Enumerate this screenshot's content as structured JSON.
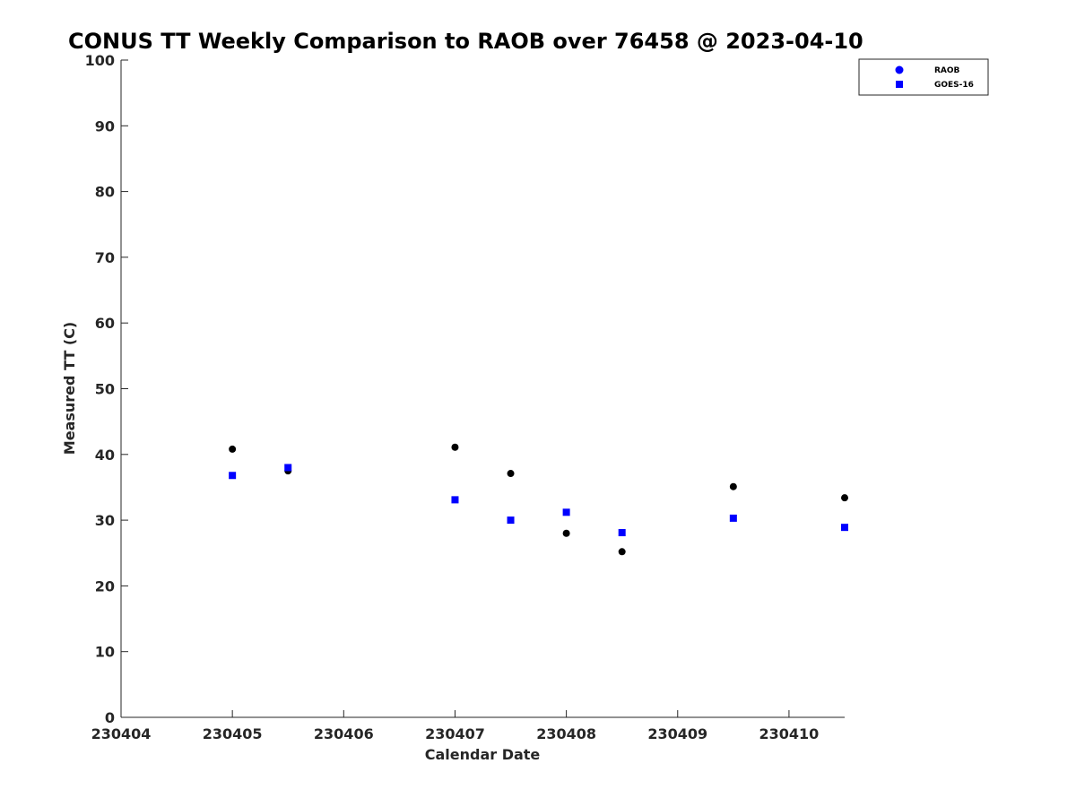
{
  "chart_data": {
    "type": "scatter",
    "title": "CONUS TT Weekly Comparison to RAOB over 76458 @ 2023-04-10",
    "xlabel": "Calendar Date",
    "ylabel": "Measured TT (C)",
    "xlim": [
      230404,
      230410.5
    ],
    "ylim": [
      0,
      100
    ],
    "xticks": [
      230404,
      230405,
      230406,
      230407,
      230408,
      230409,
      230410
    ],
    "xtick_labels": [
      "230404",
      "230405",
      "230406",
      "230407",
      "230408",
      "230409",
      "230410"
    ],
    "yticks": [
      0,
      10,
      20,
      30,
      40,
      50,
      60,
      70,
      80,
      90,
      100
    ],
    "ytick_labels": [
      "0",
      "10",
      "20",
      "30",
      "40",
      "50",
      "60",
      "70",
      "80",
      "90",
      "100"
    ],
    "grid": false,
    "legend_position": "top-right",
    "series": [
      {
        "name": "RAOB",
        "marker": "circle",
        "color": "#000000",
        "legend_color": "#0000ff",
        "x": [
          230405,
          230405.5,
          230407,
          230407.5,
          230408,
          230408.5,
          230409.5,
          230410.5
        ],
        "y": [
          40.8,
          37.5,
          41.1,
          37.1,
          28.0,
          25.2,
          35.1,
          33.4
        ]
      },
      {
        "name": "GOES-16",
        "marker": "square",
        "color": "#0000ff",
        "legend_color": "#0000ff",
        "x": [
          230405,
          230405.5,
          230407,
          230407.5,
          230408,
          230408.5,
          230409.5,
          230410.5
        ],
        "y": [
          36.8,
          38.0,
          33.1,
          30.0,
          31.2,
          28.1,
          30.3,
          28.9
        ]
      }
    ]
  }
}
